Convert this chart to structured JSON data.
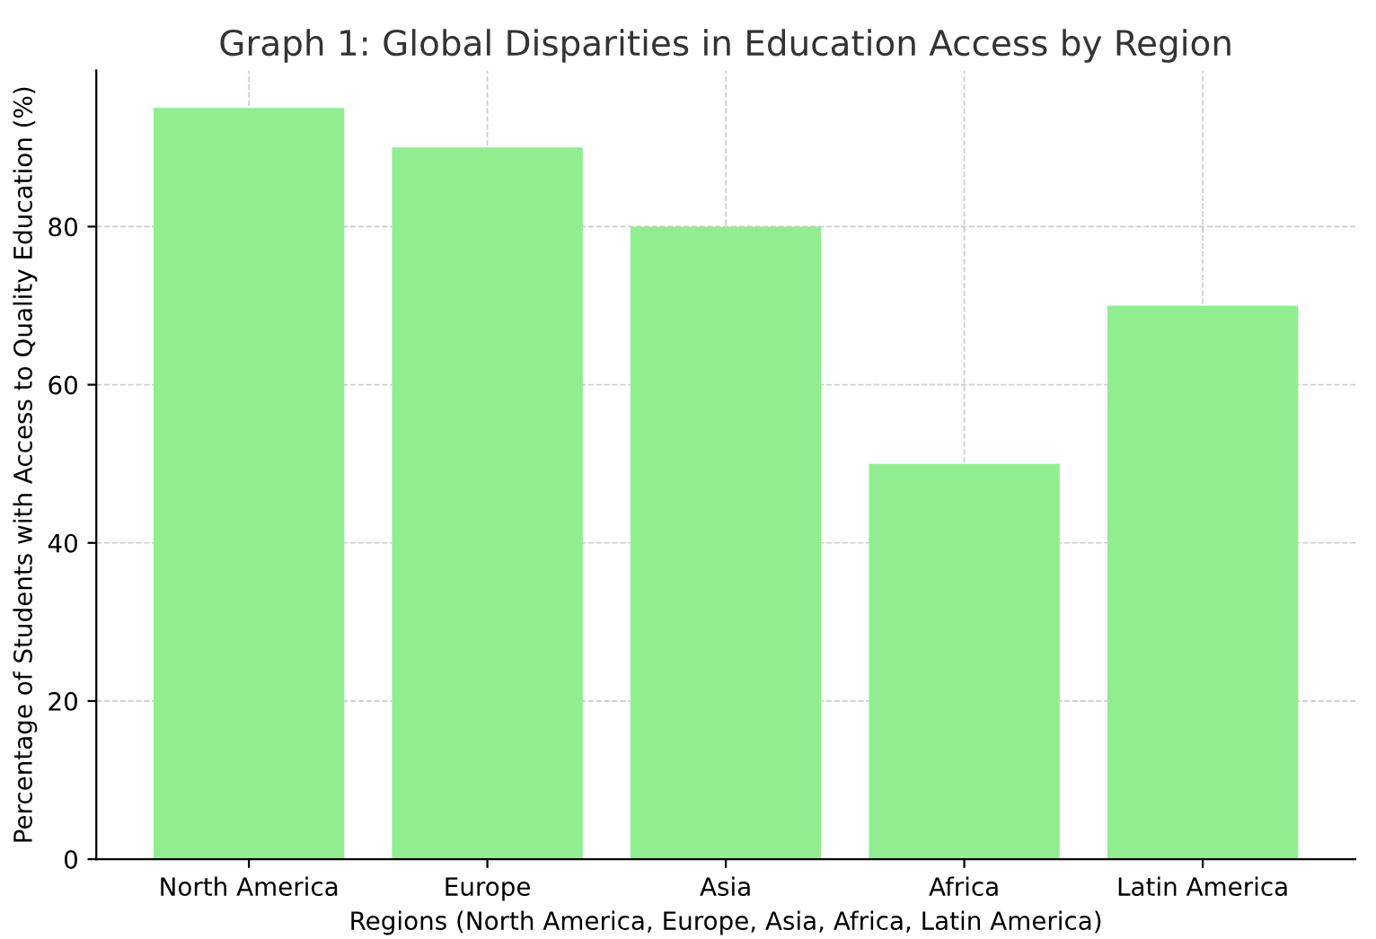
{
  "chart_data": {
    "type": "bar",
    "title": "Graph 1: Global Disparities in Education Access by Region",
    "xlabel": "Regions (North America, Europe, Asia, Africa, Latin America)",
    "ylabel": "Percentage of Students with Access to Quality Education (%)",
    "categories": [
      "North America",
      "Europe",
      "Asia",
      "Africa",
      "Latin America"
    ],
    "values": [
      95,
      90,
      80,
      50,
      70
    ],
    "color": "#90ee90",
    "ylim": [
      0,
      99.75
    ],
    "yticks": [
      0,
      20,
      40,
      60,
      80
    ],
    "grid": true
  }
}
